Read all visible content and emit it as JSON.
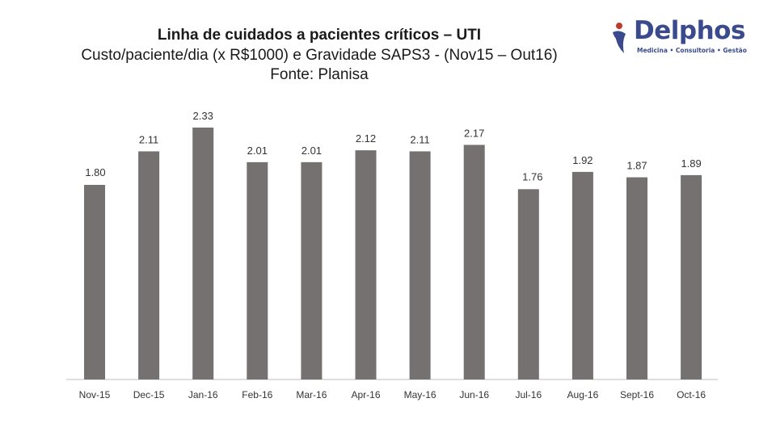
{
  "header": {
    "title_line1": "Linha de cuidados a pacientes críticos – UTI",
    "title_line2": "Custo/paciente/dia (x R$1000) e Gravidade SAPS3 - (Nov15 – Out16)",
    "title_line3": "Fonte: Planisa"
  },
  "logo": {
    "name": "Delphos",
    "tagline": "Medicina • Consultoria • Gestão",
    "brand_color": "#3a4a8c",
    "accent_color": "#c0392b"
  },
  "chart_data": {
    "type": "bar",
    "categories": [
      "Nov-15",
      "Dec-15",
      "Jan-16",
      "Feb-16",
      "Mar-16",
      "Apr-16",
      "May-16",
      "Jun-16",
      "Jul-16",
      "Aug-16",
      "Sept-16",
      "Oct-16"
    ],
    "values": [
      1.8,
      2.11,
      2.33,
      2.01,
      2.01,
      2.12,
      2.11,
      2.17,
      1.76,
      1.92,
      1.87,
      1.89
    ],
    "value_labels": [
      "1.80",
      "2.11",
      "2.33",
      "2.01",
      "2.01",
      "2.12",
      "2.11",
      "2.17",
      "1.76",
      "1.92",
      "1.87",
      "1.89"
    ],
    "label_positions": [
      "left",
      "above",
      "above",
      "above",
      "above",
      "above",
      "above",
      "above",
      "right",
      "above",
      "above",
      "above"
    ],
    "bar_color": "#767171",
    "ylim": [
      0,
      2.4
    ],
    "grid": false,
    "legend": false
  }
}
